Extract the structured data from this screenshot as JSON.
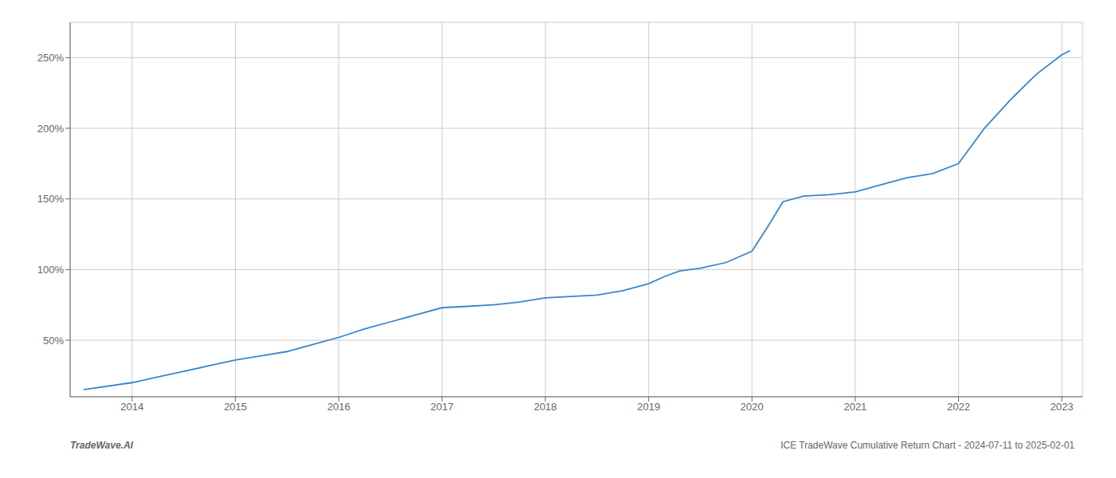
{
  "chart_data": {
    "type": "line",
    "x": [
      2013.53,
      2014.0,
      2014.25,
      2014.5,
      2014.75,
      2015.0,
      2015.25,
      2015.5,
      2015.75,
      2016.0,
      2016.25,
      2016.5,
      2016.75,
      2017.0,
      2017.25,
      2017.5,
      2017.75,
      2018.0,
      2018.25,
      2018.5,
      2018.75,
      2019.0,
      2019.15,
      2019.3,
      2019.5,
      2019.75,
      2020.0,
      2020.15,
      2020.3,
      2020.5,
      2020.75,
      2021.0,
      2021.25,
      2021.5,
      2021.75,
      2022.0,
      2022.25,
      2022.5,
      2022.75,
      2023.0,
      2023.08
    ],
    "values": [
      15,
      20,
      24,
      28,
      32,
      36,
      39,
      42,
      47,
      52,
      58,
      63,
      68,
      73,
      74,
      75,
      77,
      80,
      81,
      82,
      85,
      90,
      95,
      99,
      101,
      105,
      113,
      130,
      148,
      152,
      153,
      155,
      160,
      165,
      168,
      175,
      200,
      220,
      238,
      252,
      255
    ],
    "color": "#3a86c8",
    "xlim": [
      2013.4,
      2023.2
    ],
    "xticks": [
      2014,
      2015,
      2016,
      2017,
      2018,
      2019,
      2020,
      2021,
      2022,
      2023
    ],
    "ylim": [
      10,
      275
    ],
    "yticks": [
      {
        "value": 50,
        "label": "50%"
      },
      {
        "value": 100,
        "label": "100%"
      },
      {
        "value": 150,
        "label": "150%"
      },
      {
        "value": 200,
        "label": "200%"
      },
      {
        "value": 250,
        "label": "250%"
      }
    ],
    "grid": true,
    "annotations": [
      "TradeWave.AI",
      "ICE TradeWave Cumulative Return Chart - 2024-07-11 to 2025-02-01"
    ]
  }
}
